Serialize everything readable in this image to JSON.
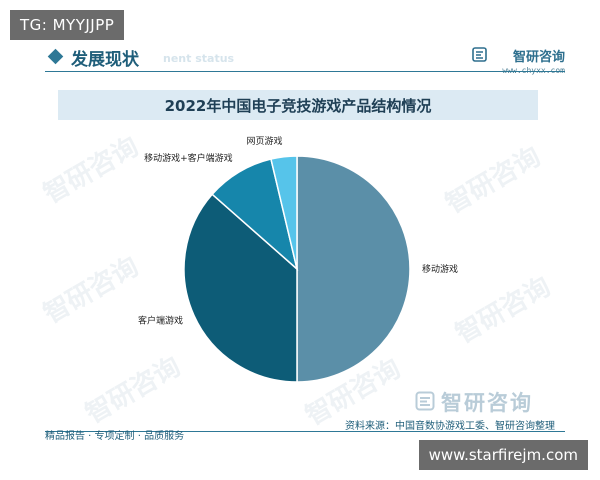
{
  "overlay_top": {
    "text": "TG: MYYJJPP"
  },
  "section": {
    "title": "发展现状",
    "subtitle_ghost": "nent status"
  },
  "brand": {
    "name": "智研咨询",
    "url": "www.chyxx.com"
  },
  "watermark": {
    "text": "智研咨询"
  },
  "footer": {
    "source": "资料来源：中国音数协游戏工委、智研咨询整理",
    "slogan": "精品报告 · 专项定制 · 品质服务",
    "brand_name": "智研咨询"
  },
  "overlay_bottom": {
    "text": "www.starfirejm.com"
  },
  "colors": {
    "mobile": "#5b8fa8",
    "client": "#0d5c77",
    "mobile_client": "#1686ab",
    "web": "#56c4ea",
    "accent": "#2e7896"
  },
  "chart_data": {
    "type": "pie",
    "title": "2022年中国电子竞技游戏产品结构情况",
    "series": [
      {
        "name": "移动游戏",
        "value": 50.0
      },
      {
        "name": "客户端游戏",
        "value": 36.5
      },
      {
        "name": "移动游戏+客户端游戏",
        "value": 9.8
      },
      {
        "name": "网页游戏",
        "value": 3.7
      }
    ],
    "labels_outside": true
  }
}
